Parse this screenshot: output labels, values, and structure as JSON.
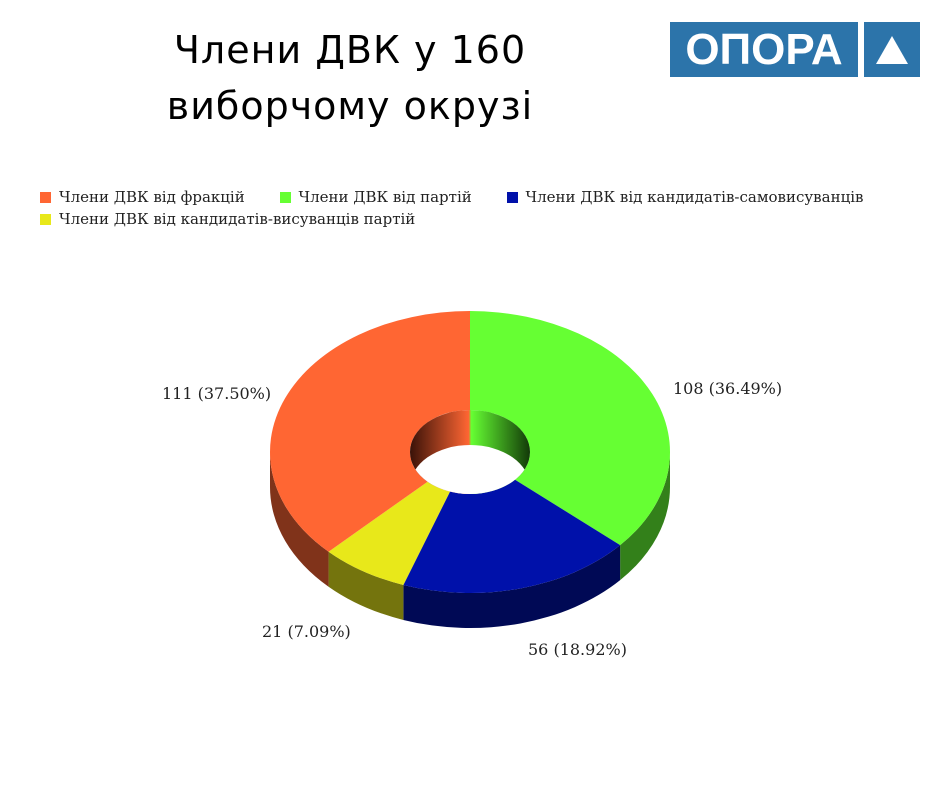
{
  "title_line1": "Члени ДВК  у 160",
  "title_line2": "виборчому окрузі",
  "logo": {
    "text": "ОПОРА",
    "icon": "triangle-icon",
    "color": "#2c74aa"
  },
  "chart_data": {
    "type": "pie",
    "style": "3d-donut",
    "legend_position": "top-left",
    "series": [
      {
        "name": "Члени ДВК від фракцій",
        "value": 111,
        "percent": 37.5,
        "label": "111 (37.50%)",
        "color": "#ff6633"
      },
      {
        "name": "Члени ДВК від партій",
        "value": 108,
        "percent": 36.49,
        "label": "108 (36.49%)",
        "color": "#66ff33"
      },
      {
        "name": "Члени ДВК від кандидатів-самовисуванців",
        "value": 56,
        "percent": 18.92,
        "label": "56 (18.92%)",
        "color": "#0011aa"
      },
      {
        "name": "Члени ДВК від кандидатів-висуванців партій",
        "value": 21,
        "percent": 7.09,
        "label": "21 (7.09%)",
        "color": "#e8e81a"
      }
    ],
    "draw_order": [
      1,
      2,
      3,
      0
    ]
  }
}
